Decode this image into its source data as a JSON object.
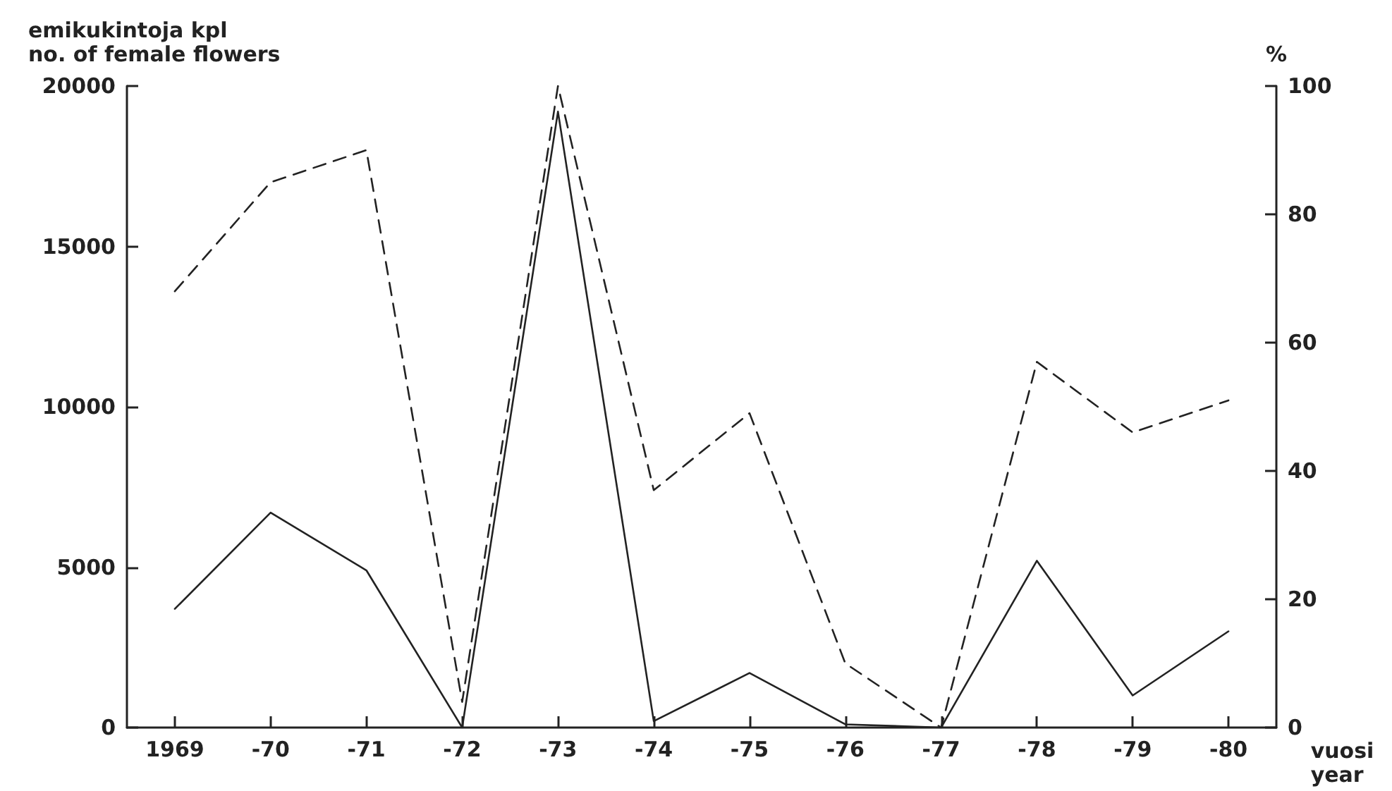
{
  "chart_data": {
    "type": "line",
    "ylabel": "emikukintoja kpl\nno. of female flowers",
    "y2label": "%",
    "xlabel": "vuosi\nyear",
    "categories": [
      "1969",
      "-70",
      "-71",
      "-72",
      "-73",
      "-74",
      "-75",
      "-76",
      "-77",
      "-78",
      "-79",
      "-80"
    ],
    "series": [
      {
        "color": "#222222",
        "line_style": "solid",
        "values": [
          3700,
          6700,
          4900,
          0,
          19200,
          200,
          1700,
          100,
          0,
          5200,
          1000,
          3000
        ]
      },
      {
        "color": "#222222",
        "line_style": "dashed",
        "axis": "y2",
        "values": [
          68,
          85,
          90,
          4,
          100,
          37,
          49,
          10,
          0,
          57,
          46,
          51
        ]
      }
    ],
    "ylim": [
      0,
      20000
    ],
    "yticks": [
      0,
      5000,
      10000,
      15000,
      20000
    ],
    "y2lim": [
      0,
      100
    ],
    "y2ticks": [
      0,
      20,
      40,
      60,
      80,
      100
    ],
    "grid": false,
    "marker": "none"
  }
}
